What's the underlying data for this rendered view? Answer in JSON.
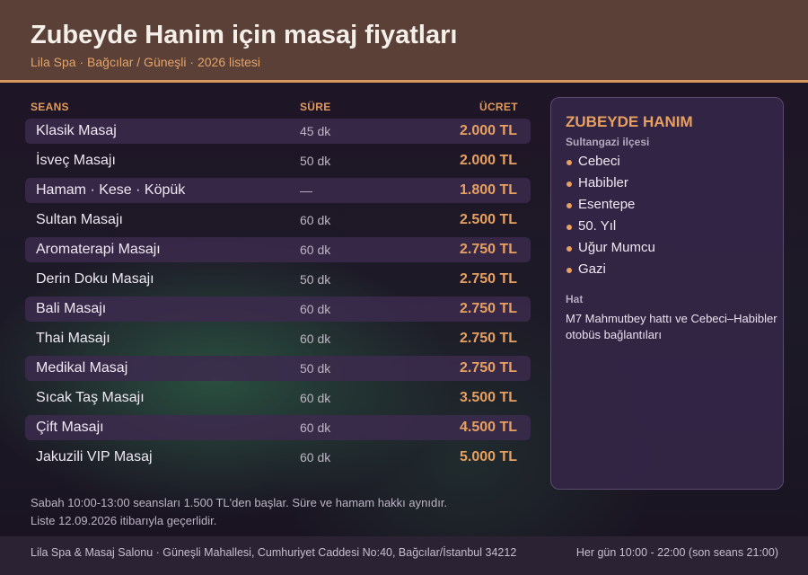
{
  "header": {
    "title": "Zubeyde Hanim için masaj fiyatları",
    "subtitle": "Lila Spa · Bağcılar / Güneşli · 2026 listesi"
  },
  "table": {
    "columns": {
      "service": "SEANS",
      "duration": "SÜRE",
      "price": "ÜCRET"
    },
    "rows": [
      {
        "name": "Klasik Masaj",
        "duration": "45 dk",
        "price": "2.000 TL"
      },
      {
        "name": "İsveç Masajı",
        "duration": "50 dk",
        "price": "2.000 TL"
      },
      {
        "name": "Hamam · Kese · Köpük",
        "duration": "—",
        "price": "1.800 TL"
      },
      {
        "name": "Sultan Masajı",
        "duration": "60 dk",
        "price": "2.500 TL"
      },
      {
        "name": "Aromaterapi Masajı",
        "duration": "60 dk",
        "price": "2.750 TL"
      },
      {
        "name": "Derin Doku Masajı",
        "duration": "50 dk",
        "price": "2.750 TL"
      },
      {
        "name": "Bali Masajı",
        "duration": "60 dk",
        "price": "2.750 TL"
      },
      {
        "name": "Thai Masajı",
        "duration": "60 dk",
        "price": "2.750 TL"
      },
      {
        "name": "Medikal Masaj",
        "duration": "50 dk",
        "price": "2.750 TL"
      },
      {
        "name": "Sıcak Taş Masajı",
        "duration": "60 dk",
        "price": "3.500 TL"
      },
      {
        "name": "Çift Masajı",
        "duration": "60 dk",
        "price": "4.500 TL"
      },
      {
        "name": "Jakuzili VIP Masaj",
        "duration": "60 dk",
        "price": "5.000 TL"
      }
    ]
  },
  "notes": {
    "line1": "Sabah 10:00-13:00 seansları 1.500 TL'den başlar. Süre ve hamam hakkı aynıdır.",
    "line2": "Liste 12.09.2026 itibarıyla geçerlidir."
  },
  "panel": {
    "title": "ZUBEYDE HANIM",
    "subtitle": "Sultangazi ilçesi",
    "neighborhoods": [
      "Cebeci",
      "Habibler",
      "Esentepe",
      "50. Yıl",
      "Uğur Mumcu",
      "Gazi"
    ],
    "line_label": "Hat",
    "line_text": "M7 Mahmutbey hattı ve Cebeci–Habibler otobüs bağlantıları"
  },
  "footer": {
    "address": "Lila Spa & Masaj Salonu · Güneşli Mahallesi, Cumhuriyet Caddesi No:40, Bağcılar/İstanbul 34212",
    "hours": "Her gün 10:00 - 22:00 (son seans 21:00)"
  },
  "colors": {
    "accent": "#e8a060",
    "header_bg": "#5a4037",
    "row_alt": "#3c2a4e",
    "panel_bg": "#342646"
  }
}
